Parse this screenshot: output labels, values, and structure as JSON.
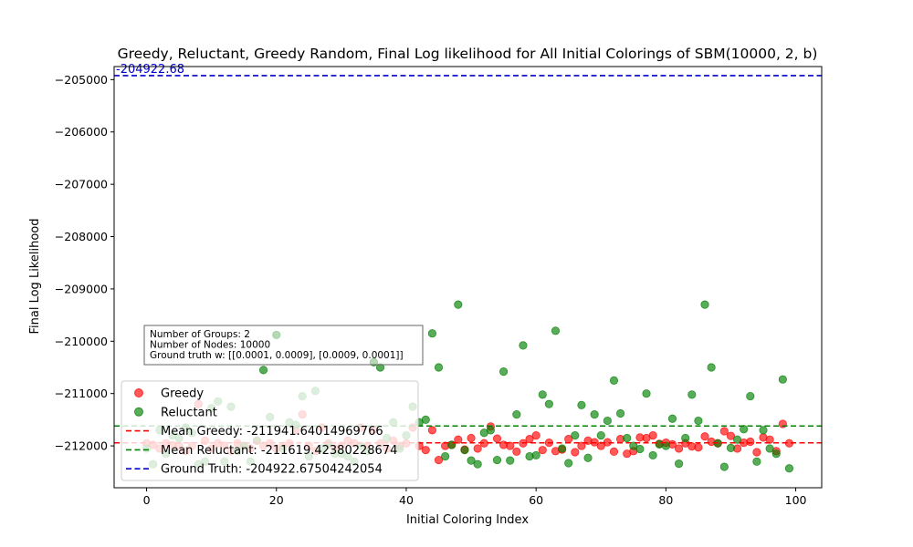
{
  "chart_data": {
    "type": "scatter",
    "title": "Greedy, Reluctant, Greedy Random, Final Log likelihood for All Initial Colorings of SBM(10000, 2, b)",
    "xlabel": "Initial Coloring Index",
    "ylabel": "Final Log Likelihood",
    "xlim": [
      -5,
      104
    ],
    "ylim": [
      -212800,
      -204750
    ],
    "xticks": [
      0,
      20,
      40,
      60,
      80,
      100
    ],
    "yticks": [
      -212000,
      -211000,
      -210000,
      -209000,
      -208000,
      -207000,
      -206000,
      -205000
    ],
    "xtick_labels": [
      "0",
      "20",
      "40",
      "60",
      "80",
      "100"
    ],
    "ytick_labels": [
      "−212000",
      "−211000",
      "−210000",
      "−209000",
      "−208000",
      "−207000",
      "−206000",
      "−205000"
    ],
    "series": [
      {
        "name": "Greedy",
        "color": "#ff0000",
        "x": [
          0,
          1,
          2,
          3,
          4,
          5,
          6,
          7,
          8,
          9,
          10,
          11,
          12,
          13,
          14,
          15,
          16,
          17,
          18,
          19,
          20,
          21,
          22,
          23,
          24,
          25,
          26,
          27,
          28,
          29,
          30,
          31,
          32,
          33,
          34,
          35,
          36,
          37,
          38,
          39,
          40,
          41,
          42,
          43,
          44,
          45,
          46,
          47,
          48,
          49,
          50,
          51,
          52,
          53,
          54,
          55,
          56,
          57,
          58,
          59,
          60,
          61,
          62,
          63,
          64,
          65,
          66,
          67,
          68,
          69,
          70,
          71,
          72,
          73,
          74,
          75,
          76,
          77,
          78,
          79,
          80,
          81,
          82,
          83,
          84,
          85,
          86,
          87,
          88,
          89,
          90,
          91,
          92,
          93,
          94,
          95,
          96,
          97,
          98,
          99
        ],
        "y": [
          -211950,
          -211980,
          -212050,
          -211950,
          -211990,
          -212000,
          -212100,
          -212000,
          -211200,
          -211900,
          -212050,
          -211950,
          -212000,
          -212100,
          -211950,
          -212000,
          -212050,
          -211900,
          -212000,
          -211950,
          -212050,
          -212000,
          -211950,
          -211700,
          -211400,
          -212000,
          -212100,
          -211650,
          -211950,
          -212050,
          -212000,
          -211900,
          -211950,
          -211650,
          -212000,
          -211700,
          -211950,
          -212050,
          -211900,
          -212000,
          -211950,
          -211650,
          -212000,
          -212080,
          -211700,
          -212270,
          -212000,
          -211980,
          -211880,
          -212070,
          -211850,
          -212050,
          -211950,
          -211630,
          -211860,
          -211980,
          -212000,
          -212110,
          -211950,
          -211870,
          -211800,
          -212080,
          -211940,
          -212100,
          -212070,
          -211870,
          -212120,
          -212000,
          -211900,
          -211930,
          -212000,
          -211930,
          -212110,
          -211870,
          -212150,
          -212100,
          -211840,
          -211850,
          -211800,
          -211960,
          -211940,
          -211970,
          -212050,
          -211950,
          -212010,
          -212030,
          -211820,
          -211920,
          -211950,
          -211720,
          -211810,
          -212050,
          -211940,
          -211920,
          -212120,
          -211840,
          -211880,
          -212100,
          -211580,
          -211950
        ]
      },
      {
        "name": "Reluctant",
        "color": "#008000",
        "x": [
          0,
          1,
          2,
          3,
          4,
          5,
          6,
          7,
          8,
          9,
          10,
          11,
          12,
          13,
          14,
          15,
          16,
          17,
          18,
          19,
          20,
          21,
          22,
          23,
          24,
          25,
          26,
          27,
          28,
          29,
          30,
          31,
          32,
          33,
          34,
          35,
          36,
          37,
          38,
          39,
          40,
          41,
          42,
          43,
          44,
          45,
          46,
          47,
          48,
          49,
          50,
          51,
          52,
          53,
          54,
          55,
          56,
          57,
          58,
          59,
          60,
          61,
          62,
          63,
          64,
          65,
          66,
          67,
          68,
          69,
          70,
          71,
          72,
          73,
          74,
          75,
          76,
          77,
          78,
          79,
          80,
          81,
          82,
          83,
          84,
          85,
          86,
          87,
          88,
          89,
          90,
          91,
          92,
          93,
          94,
          95,
          96,
          97,
          98,
          99
        ],
        "y": [
          -212050,
          -212350,
          -211700,
          -212150,
          -211800,
          -211850,
          -211650,
          -211750,
          -212350,
          -212300,
          -211280,
          -211150,
          -212300,
          -211250,
          -212100,
          -212000,
          -212300,
          -211900,
          -210550,
          -211450,
          -209880,
          -212050,
          -211550,
          -211600,
          -211050,
          -212200,
          -210950,
          -212050,
          -211980,
          -212150,
          -212150,
          -212200,
          -212300,
          -212000,
          -212100,
          -210400,
          -210500,
          -211850,
          -211550,
          -212050,
          -211800,
          -211250,
          -211550,
          -211500,
          -209850,
          -210500,
          -212200,
          -211980,
          -209300,
          -212080,
          -212280,
          -212350,
          -211750,
          -211700,
          -212270,
          -210580,
          -212280,
          -211400,
          -210080,
          -212200,
          -212180,
          -211020,
          -211200,
          -209800,
          -212050,
          -212330,
          -211800,
          -211220,
          -212230,
          -211400,
          -211800,
          -211520,
          -210750,
          -211380,
          -211850,
          -212000,
          -212060,
          -211000,
          -212180,
          -211970,
          -212000,
          -211480,
          -212340,
          -211850,
          -211020,
          -211520,
          -209300,
          -210500,
          -211950,
          -212400,
          -212040,
          -211880,
          -211680,
          -211050,
          -212300,
          -211700,
          -212050,
          -212150,
          -210730,
          -212430
        ]
      }
    ],
    "lines": [
      {
        "name": "Mean Greedy",
        "value": -211941.64014969766,
        "color": "#ff0000",
        "label": "Mean Greedy: -211941.64014969766"
      },
      {
        "name": "Mean Reluctant",
        "value": -211619.42380228674,
        "color": "#008000",
        "label": "Mean Reluctant: -211619.42380228674"
      },
      {
        "name": "Ground Truth",
        "value": -204922.67504242054,
        "color": "#0000cc",
        "label": "Ground Truth: -204922.67504242054"
      }
    ],
    "annotation": {
      "text": "-204922.68",
      "color": "#0000cc"
    },
    "info_box": {
      "lines": [
        "Number of Groups: 2",
        "Number of Nodes: 10000",
        "Ground truth w: [[0.0001, 0.0009], [0.0009, 0.0001]]"
      ]
    },
    "legend_position": "lower-left",
    "grid": false
  }
}
